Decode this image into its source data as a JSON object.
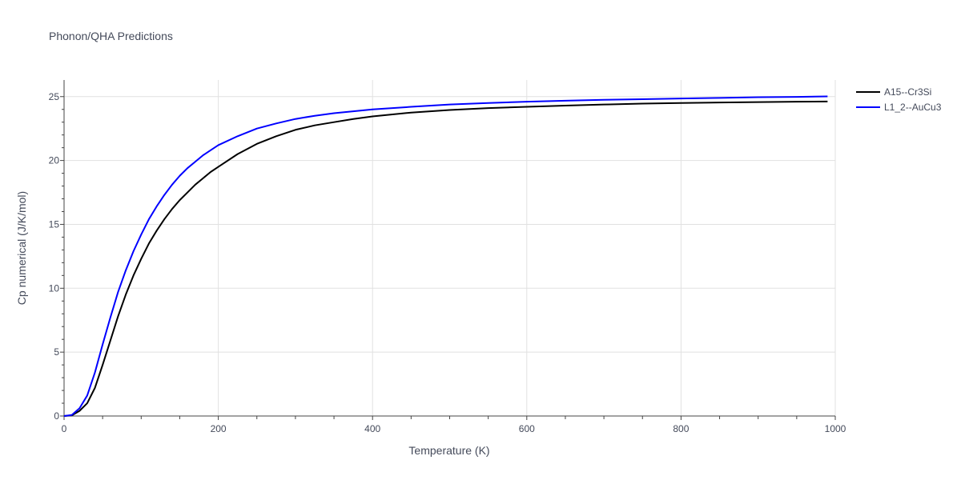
{
  "chart_data": {
    "type": "line",
    "title": "Phonon/QHA Predictions",
    "xlabel": "Temperature (K)",
    "ylabel": "Cp numerical (J/K/mol)",
    "xlim": [
      0,
      1000
    ],
    "ylim": [
      0,
      26.3
    ],
    "xticks": [
      0,
      200,
      400,
      600,
      800,
      1000
    ],
    "yticks": [
      0,
      5,
      10,
      15,
      20,
      25
    ],
    "grid": true,
    "legend_position": "top-right",
    "series": [
      {
        "name": "A15--Cr3Si",
        "color": "#000000",
        "x": [
          0,
          10,
          20,
          30,
          40,
          50,
          60,
          70,
          80,
          90,
          100,
          110,
          120,
          130,
          140,
          150,
          160,
          170,
          180,
          190,
          200,
          225,
          250,
          275,
          300,
          325,
          350,
          375,
          400,
          450,
          500,
          550,
          600,
          650,
          700,
          750,
          800,
          850,
          900,
          950,
          990
        ],
        "y": [
          0,
          0.05,
          0.4,
          1.0,
          2.2,
          4.0,
          5.9,
          7.8,
          9.5,
          11.0,
          12.3,
          13.5,
          14.5,
          15.4,
          16.2,
          16.9,
          17.5,
          18.1,
          18.6,
          19.1,
          19.5,
          20.5,
          21.3,
          21.9,
          22.4,
          22.75,
          23.0,
          23.25,
          23.45,
          23.75,
          23.95,
          24.1,
          24.2,
          24.3,
          24.38,
          24.45,
          24.5,
          24.54,
          24.57,
          24.6,
          24.62
        ]
      },
      {
        "name": "L1_2--AuCu3",
        "color": "#0000ff",
        "x": [
          0,
          10,
          20,
          30,
          40,
          50,
          60,
          70,
          80,
          90,
          100,
          110,
          120,
          130,
          140,
          150,
          160,
          170,
          180,
          190,
          200,
          225,
          250,
          275,
          300,
          325,
          350,
          375,
          400,
          450,
          500,
          550,
          600,
          650,
          700,
          750,
          800,
          850,
          900,
          950,
          990
        ],
        "y": [
          0,
          0.08,
          0.6,
          1.6,
          3.4,
          5.6,
          7.7,
          9.7,
          11.4,
          12.9,
          14.2,
          15.4,
          16.4,
          17.3,
          18.1,
          18.8,
          19.4,
          19.9,
          20.4,
          20.8,
          21.2,
          21.9,
          22.5,
          22.9,
          23.25,
          23.5,
          23.7,
          23.85,
          24.0,
          24.2,
          24.38,
          24.5,
          24.6,
          24.68,
          24.75,
          24.8,
          24.85,
          24.9,
          24.95,
          24.98,
          25.02
        ]
      }
    ]
  }
}
